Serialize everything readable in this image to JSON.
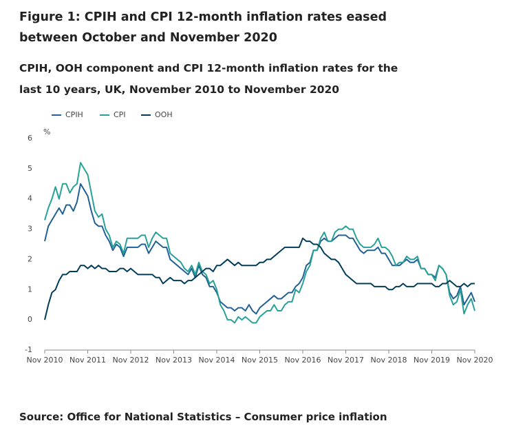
{
  "chart_data": {
    "type": "line",
    "title": "Figure 1: CPIH and CPI 12-month inflation rates eased between October and November 2020",
    "subtitle": "CPIH, OOH component and CPI 12-month inflation rates for the last 10 years, UK, November 2010 to November 2020",
    "y_unit": "%",
    "source": "Source: Office for National Statistics – Consumer price inflation",
    "categories": [
      "Nov 2010",
      null,
      null,
      null,
      null,
      null,
      null,
      null,
      null,
      null,
      null,
      null,
      "Nov 2011",
      null,
      null,
      null,
      null,
      null,
      null,
      null,
      null,
      null,
      null,
      null,
      "Nov 2012",
      null,
      null,
      null,
      null,
      null,
      null,
      null,
      null,
      null,
      null,
      null,
      "Nov 2013",
      null,
      null,
      null,
      null,
      null,
      null,
      null,
      null,
      null,
      null,
      null,
      "Nov 2014",
      null,
      null,
      null,
      null,
      null,
      null,
      null,
      null,
      null,
      null,
      null,
      "Nov 2015",
      null,
      null,
      null,
      null,
      null,
      null,
      null,
      null,
      null,
      null,
      null,
      "Nov 2016",
      null,
      null,
      null,
      null,
      null,
      null,
      null,
      null,
      null,
      null,
      null,
      "Nov 2017",
      null,
      null,
      null,
      null,
      null,
      null,
      null,
      null,
      null,
      null,
      null,
      "Nov 2018",
      null,
      null,
      null,
      null,
      null,
      null,
      null,
      null,
      null,
      null,
      null,
      "Nov 2019",
      null,
      null,
      null,
      null,
      null,
      null,
      null,
      null,
      null,
      null,
      null,
      "Nov 2020"
    ],
    "ylim": [
      -1,
      6
    ],
    "yticks": [
      -1,
      0,
      1,
      2,
      3,
      4,
      5,
      6
    ],
    "grid": false,
    "legend": "top-left",
    "series": [
      {
        "name": "CPIH",
        "color": "#206095",
        "values": [
          2.6,
          3.1,
          3.3,
          3.5,
          3.7,
          3.5,
          3.8,
          3.8,
          3.6,
          3.9,
          4.5,
          4.3,
          4.1,
          3.6,
          3.2,
          3.1,
          3.1,
          2.8,
          2.6,
          2.3,
          2.5,
          2.4,
          2.1,
          2.4,
          2.4,
          2.4,
          2.4,
          2.5,
          2.5,
          2.2,
          2.4,
          2.6,
          2.5,
          2.4,
          2.4,
          2.0,
          1.9,
          1.8,
          1.7,
          1.6,
          1.5,
          1.7,
          1.4,
          1.8,
          1.5,
          1.4,
          1.1,
          1.1,
          0.9,
          0.6,
          0.5,
          0.4,
          0.4,
          0.3,
          0.4,
          0.4,
          0.3,
          0.5,
          0.3,
          0.2,
          0.4,
          0.5,
          0.6,
          0.7,
          0.8,
          0.7,
          0.7,
          0.8,
          0.9,
          0.9,
          1.1,
          1.2,
          1.4,
          1.8,
          1.9,
          2.3,
          2.3,
          2.6,
          2.7,
          2.6,
          2.6,
          2.7,
          2.8,
          2.8,
          2.8,
          2.7,
          2.7,
          2.5,
          2.3,
          2.2,
          2.3,
          2.3,
          2.3,
          2.4,
          2.2,
          2.2,
          2.0,
          1.8,
          1.8,
          1.8,
          1.9,
          2.0,
          1.9,
          1.9,
          2.0,
          1.7,
          1.7,
          1.5,
          1.5,
          1.4,
          1.8,
          1.7,
          1.5,
          0.9,
          0.7,
          0.8,
          1.1,
          0.5,
          0.7,
          0.9,
          0.6
        ]
      },
      {
        "name": "CPI",
        "color": "#27a197",
        "values": [
          3.3,
          3.7,
          4.0,
          4.4,
          4.0,
          4.5,
          4.5,
          4.2,
          4.4,
          4.5,
          5.2,
          5.0,
          4.8,
          4.2,
          3.6,
          3.4,
          3.5,
          3.0,
          2.8,
          2.4,
          2.6,
          2.5,
          2.2,
          2.7,
          2.7,
          2.7,
          2.7,
          2.8,
          2.8,
          2.4,
          2.7,
          2.9,
          2.8,
          2.7,
          2.7,
          2.2,
          2.1,
          2.0,
          1.9,
          1.7,
          1.6,
          1.8,
          1.5,
          1.9,
          1.6,
          1.5,
          1.2,
          1.3,
          1.0,
          0.5,
          0.3,
          0.0,
          0.0,
          -0.1,
          0.1,
          0.0,
          0.1,
          0.0,
          -0.1,
          -0.1,
          0.1,
          0.2,
          0.3,
          0.3,
          0.5,
          0.3,
          0.3,
          0.5,
          0.6,
          0.6,
          1.0,
          0.9,
          1.2,
          1.6,
          1.8,
          2.3,
          2.3,
          2.7,
          2.9,
          2.6,
          2.6,
          2.9,
          3.0,
          3.0,
          3.1,
          3.0,
          3.0,
          2.7,
          2.5,
          2.4,
          2.4,
          2.4,
          2.5,
          2.7,
          2.4,
          2.4,
          2.3,
          2.1,
          1.8,
          1.9,
          1.9,
          2.1,
          2.0,
          2.0,
          2.1,
          1.7,
          1.7,
          1.5,
          1.5,
          1.3,
          1.8,
          1.7,
          1.5,
          0.8,
          0.5,
          0.6,
          1.0,
          0.2,
          0.5,
          0.7,
          0.3
        ]
      },
      {
        "name": "OOH",
        "color": "#003c57",
        "values": [
          0.0,
          0.5,
          0.9,
          1.0,
          1.3,
          1.5,
          1.5,
          1.6,
          1.6,
          1.6,
          1.8,
          1.8,
          1.7,
          1.8,
          1.7,
          1.8,
          1.7,
          1.7,
          1.6,
          1.6,
          1.6,
          1.7,
          1.7,
          1.6,
          1.7,
          1.6,
          1.5,
          1.5,
          1.5,
          1.5,
          1.5,
          1.4,
          1.4,
          1.2,
          1.3,
          1.4,
          1.3,
          1.3,
          1.3,
          1.2,
          1.3,
          1.3,
          1.4,
          1.5,
          1.6,
          1.7,
          1.7,
          1.6,
          1.8,
          1.8,
          1.9,
          2.0,
          1.9,
          1.8,
          1.9,
          1.8,
          1.8,
          1.8,
          1.8,
          1.8,
          1.9,
          1.9,
          2.0,
          2.0,
          2.1,
          2.2,
          2.3,
          2.4,
          2.4,
          2.4,
          2.4,
          2.4,
          2.7,
          2.6,
          2.6,
          2.5,
          2.5,
          2.4,
          2.2,
          2.1,
          2.0,
          2.0,
          1.9,
          1.7,
          1.5,
          1.4,
          1.3,
          1.2,
          1.2,
          1.2,
          1.2,
          1.2,
          1.1,
          1.1,
          1.1,
          1.1,
          1.0,
          1.0,
          1.1,
          1.1,
          1.2,
          1.1,
          1.1,
          1.1,
          1.2,
          1.2,
          1.2,
          1.2,
          1.2,
          1.1,
          1.1,
          1.2,
          1.2,
          1.3,
          1.2,
          1.1,
          1.1,
          1.2,
          1.1,
          1.2,
          1.2
        ]
      }
    ]
  }
}
